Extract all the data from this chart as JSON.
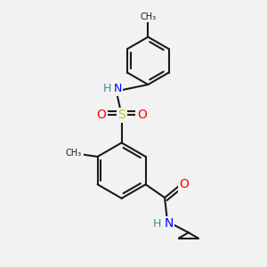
{
  "background_color": "#f2f2f2",
  "bond_color": "#1a1a1a",
  "bond_width": 1.5,
  "atoms": {
    "S": {
      "color": "#cccc00"
    },
    "O": {
      "color": "#ff0000"
    },
    "N": {
      "color": "#0000ff"
    },
    "H": {
      "color": "#448899"
    }
  },
  "figsize": [
    3.0,
    3.0
  ],
  "dpi": 100
}
